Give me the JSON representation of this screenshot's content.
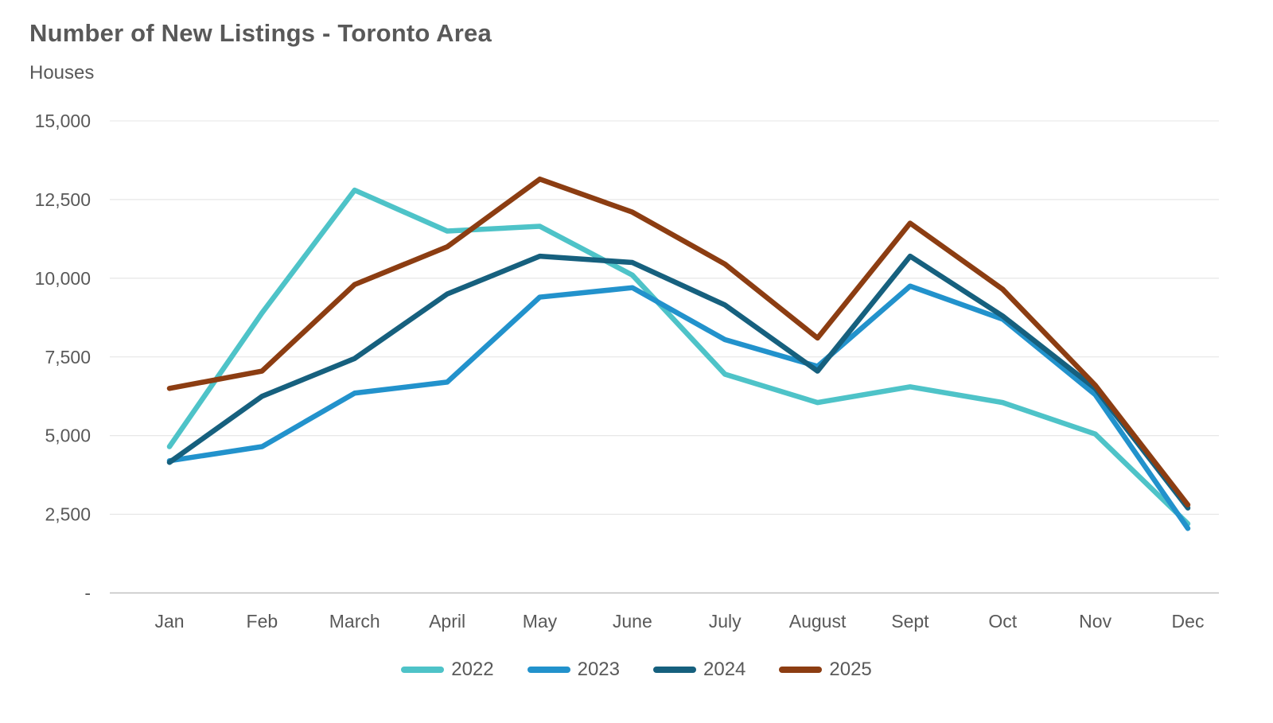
{
  "header": {
    "title": "Number of New Listings - Toronto Area",
    "subtitle": "Houses"
  },
  "chart_data": {
    "type": "line",
    "title": "Number of New Listings - Toronto Area",
    "subtitle": "Houses",
    "categories": [
      "Jan",
      "Feb",
      "March",
      "April",
      "May",
      "June",
      "July",
      "August",
      "Sept",
      "Oct",
      "Nov",
      "Dec"
    ],
    "series": [
      {
        "name": "2022",
        "color": "#4EC3C8",
        "values": [
          4650,
          8900,
          12800,
          11500,
          11650,
          10100,
          6950,
          6050,
          6550,
          6050,
          5050,
          2200
        ]
      },
      {
        "name": "2023",
        "color": "#2292CC",
        "values": [
          4200,
          4650,
          6350,
          6700,
          9400,
          9700,
          8050,
          7200,
          9750,
          8700,
          6300,
          2050
        ]
      },
      {
        "name": "2024",
        "color": "#16607E",
        "values": [
          4150,
          6250,
          7450,
          9500,
          10700,
          10500,
          9150,
          7050,
          10700,
          8800,
          6500,
          2700
        ]
      },
      {
        "name": "2025",
        "color": "#8C3D12",
        "values": [
          6500,
          7050,
          9800,
          11000,
          13150,
          12100,
          10450,
          8100,
          11750,
          9650,
          6600,
          2800
        ]
      }
    ],
    "y_axis": {
      "min": 0,
      "max": 15000,
      "step": 2500,
      "tick_labels": [
        "-",
        "2,500",
        "5,000",
        "7,500",
        "10,000",
        "12,500",
        "15,000"
      ]
    },
    "grid": true,
    "legend_position": "bottom",
    "colors": {
      "text": "#595959",
      "gridline": "#E4E4E4",
      "axis_line": "#BFBFBF",
      "background": "#FFFFFF"
    }
  }
}
